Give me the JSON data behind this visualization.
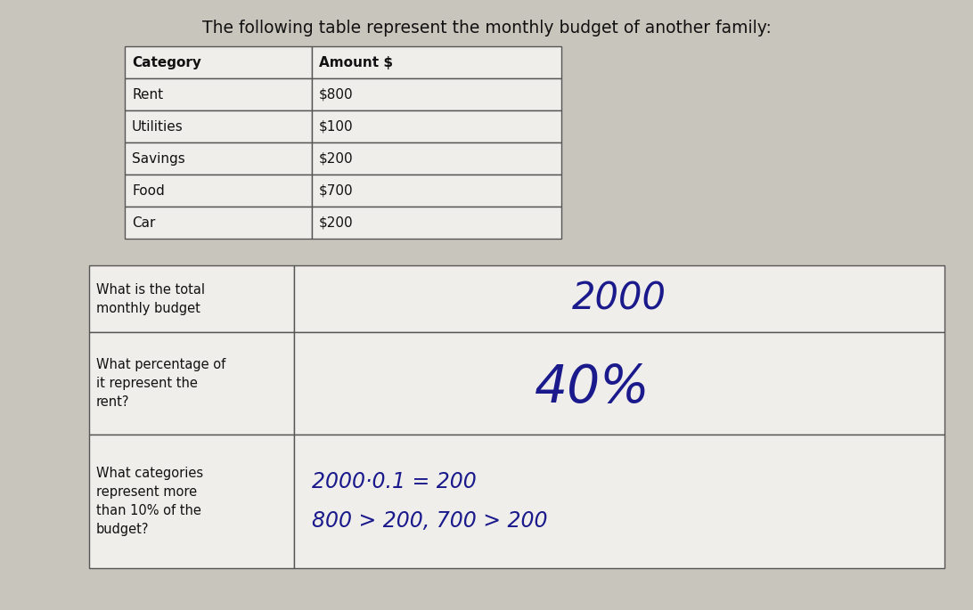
{
  "title": "The following table represent the monthly budget of another family:",
  "title_fontsize": 13.5,
  "background_color": "#c8c5bc",
  "table_bg": "#e8e6e0",
  "cell_bg": "#f0eeea",
  "table1_headers": [
    "Category",
    "Amount $"
  ],
  "table1_rows": [
    [
      "Rent",
      "$800"
    ],
    [
      "Utilities",
      "$100"
    ],
    [
      "Savings",
      "$200"
    ],
    [
      "Food",
      "$700"
    ],
    [
      "Car",
      "$200"
    ]
  ],
  "table2_q1": "What is the total\nmonthly budget",
  "table2_a1": "2000",
  "table2_q2": "What percentage of\nit represent the\nrent?",
  "table2_a2": "40%",
  "table2_q3": "What categories\nrepresent more\nthan 10% of the\nbudget?",
  "table2_a3_line1": "2000·0.1 = 200",
  "table2_a3_line2": "800 > 200, 700 > 200",
  "answer_color": "#1a1a8c",
  "text_color": "#111111",
  "line_color": "#555555",
  "header_bold": true
}
